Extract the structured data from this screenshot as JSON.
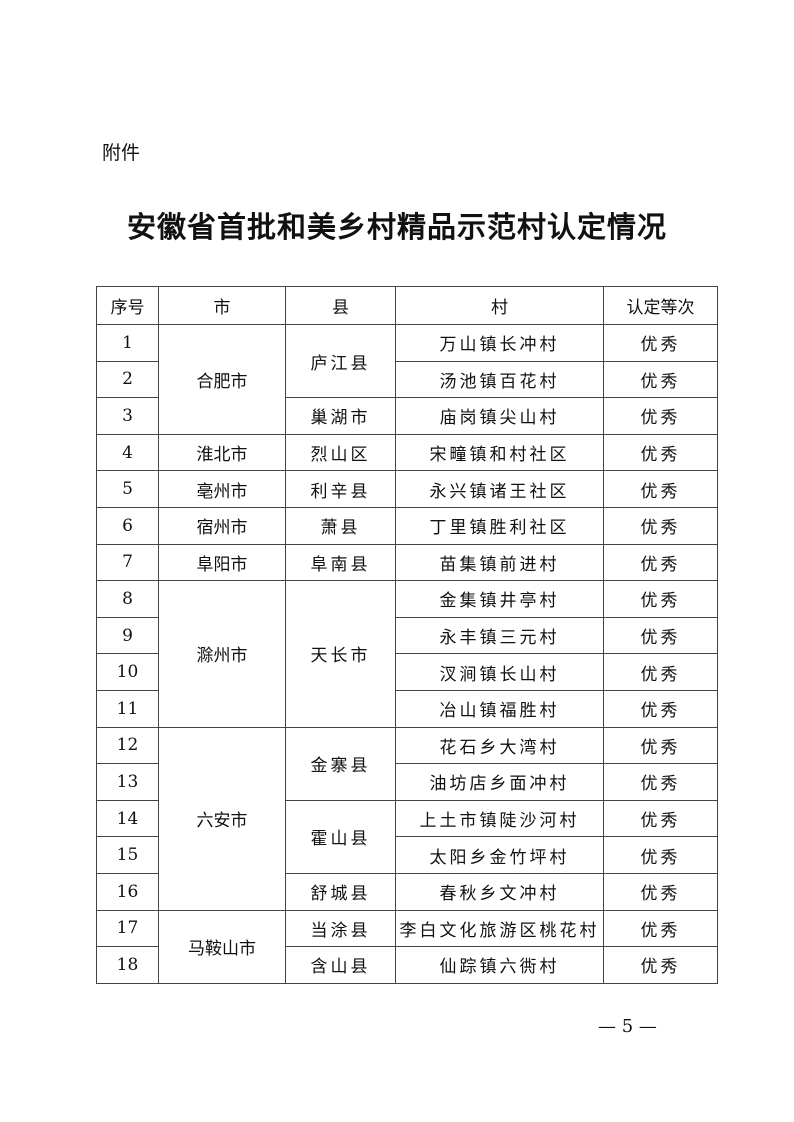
{
  "attachment_label": "附件",
  "title": "安徽省首批和美乡村精品示范村认定情况",
  "table": {
    "headers": [
      "序号",
      "市",
      "县",
      "村",
      "认定等次"
    ],
    "cities": [
      {
        "name": "合肥市",
        "counties": [
          {
            "name": "庐江县",
            "villages": [
              {
                "no": "1",
                "name": "万山镇长冲村",
                "grade": "优秀"
              },
              {
                "no": "2",
                "name": "汤池镇百花村",
                "grade": "优秀"
              }
            ]
          },
          {
            "name": "巢湖市",
            "villages": [
              {
                "no": "3",
                "name": "庙岗镇尖山村",
                "grade": "优秀"
              }
            ]
          }
        ]
      },
      {
        "name": "淮北市",
        "counties": [
          {
            "name": "烈山区",
            "villages": [
              {
                "no": "4",
                "name": "宋疃镇和村社区",
                "grade": "优秀"
              }
            ]
          }
        ]
      },
      {
        "name": "亳州市",
        "counties": [
          {
            "name": "利辛县",
            "villages": [
              {
                "no": "5",
                "name": "永兴镇诸王社区",
                "grade": "优秀"
              }
            ]
          }
        ]
      },
      {
        "name": "宿州市",
        "counties": [
          {
            "name": "萧县",
            "villages": [
              {
                "no": "6",
                "name": "丁里镇胜利社区",
                "grade": "优秀"
              }
            ]
          }
        ]
      },
      {
        "name": "阜阳市",
        "counties": [
          {
            "name": "阜南县",
            "villages": [
              {
                "no": "7",
                "name": "苗集镇前进村",
                "grade": "优秀"
              }
            ]
          }
        ]
      },
      {
        "name": "滁州市",
        "counties": [
          {
            "name": "天长市",
            "villages": [
              {
                "no": "8",
                "name": "金集镇井亭村",
                "grade": "优秀"
              },
              {
                "no": "9",
                "name": "永丰镇三元村",
                "grade": "优秀"
              },
              {
                "no": "10",
                "name": "汊涧镇长山村",
                "grade": "优秀"
              },
              {
                "no": "11",
                "name": "冶山镇福胜村",
                "grade": "优秀"
              }
            ]
          }
        ]
      },
      {
        "name": "六安市",
        "counties": [
          {
            "name": "金寨县",
            "villages": [
              {
                "no": "12",
                "name": "花石乡大湾村",
                "grade": "优秀"
              },
              {
                "no": "13",
                "name": "油坊店乡面冲村",
                "grade": "优秀"
              }
            ]
          },
          {
            "name": "霍山县",
            "villages": [
              {
                "no": "14",
                "name": "上土市镇陡沙河村",
                "grade": "优秀"
              },
              {
                "no": "15",
                "name": "太阳乡金竹坪村",
                "grade": "优秀"
              }
            ]
          },
          {
            "name": "舒城县",
            "villages": [
              {
                "no": "16",
                "name": "春秋乡文冲村",
                "grade": "优秀"
              }
            ]
          }
        ]
      },
      {
        "name": "马鞍山市",
        "counties": [
          {
            "name": "当涂县",
            "villages": [
              {
                "no": "17",
                "name": "李白文化旅游区桃花村",
                "grade": "优秀"
              }
            ]
          },
          {
            "name": "含山县",
            "villages": [
              {
                "no": "18",
                "name": "仙踪镇六衖村",
                "grade": "优秀"
              }
            ]
          }
        ]
      }
    ]
  },
  "page_number": "— 5 —"
}
